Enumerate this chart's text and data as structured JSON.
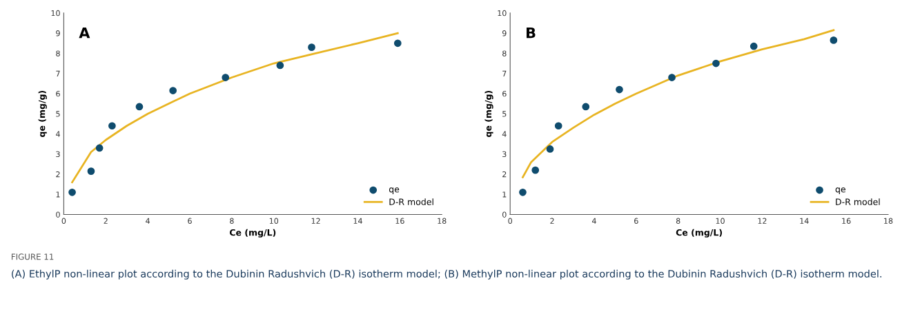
{
  "chart_data": [
    {
      "type": "scatter",
      "xlabel": "Ce (mg/L)",
      "ylabel": "qe (mg/g)",
      "annotations": [
        "A",
        "FIGURE 11",
        "(A) EthylP non-linear plot according to the Dubinin Radushvich (D-R) isotherm model; (B) MethylP non-linear plot according to the Dubinin Radushvich (D-R) isotherm model."
      ],
      "xlim": [
        0,
        18
      ],
      "xticks": [
        0,
        2,
        4,
        6,
        8,
        10,
        12,
        14,
        16,
        18
      ],
      "ylim": [
        0,
        10
      ],
      "yticks": [
        0,
        1,
        2,
        3,
        4,
        5,
        6,
        7,
        8,
        9,
        10
      ],
      "grid": false,
      "legend": "bottom right",
      "series": [
        {
          "name": "qe",
          "color": "#0f4c6e",
          "marker": "circle",
          "x": [
            0.4,
            1.3,
            1.7,
            2.3,
            3.6,
            5.2,
            7.7,
            10.3,
            11.8,
            15.9
          ],
          "values": [
            1.1,
            2.15,
            3.3,
            4.4,
            5.35,
            6.15,
            6.8,
            7.4,
            8.3,
            8.5
          ]
        },
        {
          "name": "D-R model",
          "type": "line",
          "color": "#e8b422",
          "line_style": "solid",
          "x": [
            0.4,
            1.3,
            2,
            3,
            4,
            5,
            6,
            8,
            10,
            12,
            14,
            15.9
          ],
          "values": [
            1.6,
            3.1,
            3.7,
            4.4,
            5.0,
            5.5,
            6.0,
            6.8,
            7.5,
            8.0,
            8.5,
            9.0
          ]
        }
      ]
    },
    {
      "type": "scatter",
      "xlabel": "Ce (mg/L)",
      "ylabel": "qe (mg/g)",
      "annotations": [
        "B"
      ],
      "xlim": [
        0,
        18
      ],
      "xticks": [
        0,
        2,
        4,
        6,
        8,
        10,
        12,
        14,
        16,
        18
      ],
      "ylim": [
        0,
        10
      ],
      "yticks": [
        0,
        1,
        2,
        3,
        4,
        5,
        6,
        7,
        8,
        9,
        10
      ],
      "grid": false,
      "legend": "bottom right",
      "series": [
        {
          "name": "qe",
          "color": "#0f4c6e",
          "marker": "circle",
          "x": [
            0.6,
            1.2,
            1.9,
            2.3,
            3.6,
            5.2,
            7.7,
            9.8,
            11.6,
            15.4
          ],
          "values": [
            1.1,
            2.2,
            3.25,
            4.4,
            5.35,
            6.2,
            6.8,
            7.5,
            8.35,
            8.65
          ]
        },
        {
          "name": "D-R model",
          "type": "line",
          "color": "#e8b422",
          "line_style": "solid",
          "x": [
            0.6,
            1,
            2,
            3,
            4,
            5,
            6,
            8,
            10,
            12,
            14,
            15.4
          ],
          "values": [
            1.85,
            2.6,
            3.6,
            4.3,
            4.95,
            5.5,
            6.0,
            6.9,
            7.6,
            8.2,
            8.7,
            9.15
          ]
        }
      ]
    }
  ]
}
